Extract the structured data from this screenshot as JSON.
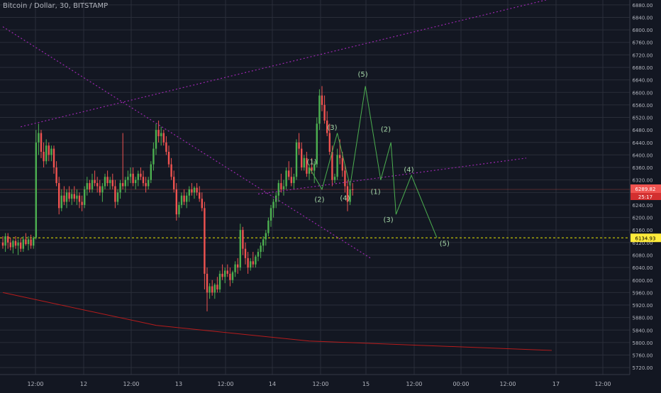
{
  "header": {
    "title": "Bitcoin / Dollar, 30, BITSTAMP"
  },
  "colors": {
    "background": "#131722",
    "grid": "#2a2e39",
    "axis_text": "#b2b5be",
    "candle_up": "#26a69a",
    "candle_up_alt": "#4caf50",
    "candle_down": "#ef5350",
    "trendline": "#9c27b0",
    "wave": "#4caf50",
    "wave_label": "#a5d6a7",
    "support": "#e6e600",
    "price_label_bg": "#ef5350",
    "support_label_bg": "#ffeb3b",
    "red_curve": "#b71c1c"
  },
  "chart_data": {
    "type": "candlestick",
    "symbol": "Bitcoin / Dollar",
    "interval": "30",
    "exchange": "BITSTAMP",
    "ylim": [
      5700,
      6900
    ],
    "y_ticks": [
      5720,
      5760,
      5800,
      5840,
      5880,
      5920,
      5960,
      6000,
      6040,
      6080,
      6120,
      6160,
      6200,
      6240,
      6280,
      6320,
      6360,
      6400,
      6440,
      6480,
      6520,
      6560,
      6600,
      6640,
      6680,
      6720,
      6760,
      6800,
      6840,
      6880
    ],
    "x_ticks": [
      "12:00",
      "12",
      "12:00",
      "13",
      "12:00",
      "14",
      "12:00",
      "15",
      "12:00",
      "00:00",
      "12:00",
      "17",
      "12:00"
    ],
    "current_price": {
      "value": 6289.82,
      "label": "6289.82",
      "countdown": "25:17"
    },
    "support_level": {
      "value": 6134.93,
      "label": "6134.93"
    },
    "ohlc_path": [
      [
        6120,
        6140,
        6100,
        6110
      ],
      [
        6110,
        6150,
        6090,
        6140
      ],
      [
        6140,
        6150,
        6100,
        6120
      ],
      [
        6120,
        6135,
        6095,
        6105
      ],
      [
        6105,
        6130,
        6085,
        6125
      ],
      [
        6125,
        6140,
        6100,
        6110
      ],
      [
        6110,
        6130,
        6080,
        6120
      ],
      [
        6120,
        6135,
        6090,
        6100
      ],
      [
        6100,
        6140,
        6090,
        6130
      ],
      [
        6130,
        6150,
        6110,
        6115
      ],
      [
        6115,
        6140,
        6095,
        6130
      ],
      [
        6130,
        6145,
        6100,
        6110
      ],
      [
        6110,
        6140,
        6100,
        6135
      ],
      [
        6135,
        6480,
        6130,
        6440
      ],
      [
        6440,
        6500,
        6400,
        6470
      ],
      [
        6470,
        6480,
        6390,
        6410
      ],
      [
        6410,
        6440,
        6360,
        6380
      ],
      [
        6380,
        6450,
        6370,
        6430
      ],
      [
        6430,
        6440,
        6380,
        6400
      ],
      [
        6400,
        6430,
        6380,
        6420
      ],
      [
        6420,
        6430,
        6340,
        6360
      ],
      [
        6360,
        6380,
        6300,
        6310
      ],
      [
        6310,
        6330,
        6210,
        6230
      ],
      [
        6230,
        6290,
        6220,
        6270
      ],
      [
        6270,
        6300,
        6240,
        6250
      ],
      [
        6250,
        6290,
        6230,
        6280
      ],
      [
        6280,
        6300,
        6250,
        6260
      ],
      [
        6260,
        6290,
        6240,
        6275
      ],
      [
        6275,
        6300,
        6250,
        6260
      ],
      [
        6260,
        6290,
        6240,
        6270
      ],
      [
        6270,
        6280,
        6230,
        6250
      ],
      [
        6250,
        6270,
        6220,
        6240
      ],
      [
        6240,
        6300,
        6230,
        6290
      ],
      [
        6290,
        6330,
        6270,
        6310
      ],
      [
        6310,
        6320,
        6280,
        6290
      ],
      [
        6290,
        6340,
        6280,
        6320
      ],
      [
        6320,
        6350,
        6300,
        6310
      ],
      [
        6310,
        6330,
        6280,
        6300
      ],
      [
        6300,
        6320,
        6270,
        6280
      ],
      [
        6280,
        6310,
        6250,
        6300
      ],
      [
        6300,
        6340,
        6290,
        6330
      ],
      [
        6330,
        6350,
        6300,
        6310
      ],
      [
        6310,
        6330,
        6290,
        6320
      ],
      [
        6320,
        6340,
        6290,
        6300
      ],
      [
        6300,
        6320,
        6230,
        6250
      ],
      [
        6250,
        6290,
        6240,
        6280
      ],
      [
        6280,
        6320,
        6260,
        6310
      ],
      [
        6310,
        6470,
        6290,
        6300
      ],
      [
        6300,
        6330,
        6280,
        6320
      ],
      [
        6320,
        6350,
        6300,
        6330
      ],
      [
        6330,
        6360,
        6310,
        6340
      ],
      [
        6340,
        6360,
        6300,
        6310
      ],
      [
        6310,
        6330,
        6290,
        6320
      ],
      [
        6320,
        6350,
        6300,
        6340
      ],
      [
        6340,
        6360,
        6320,
        6330
      ],
      [
        6330,
        6350,
        6300,
        6310
      ],
      [
        6310,
        6330,
        6280,
        6300
      ],
      [
        6300,
        6330,
        6290,
        6320
      ],
      [
        6320,
        6380,
        6310,
        6370
      ],
      [
        6370,
        6440,
        6350,
        6420
      ],
      [
        6420,
        6500,
        6400,
        6480
      ],
      [
        6480,
        6510,
        6440,
        6460
      ],
      [
        6460,
        6490,
        6430,
        6470
      ],
      [
        6470,
        6480,
        6430,
        6440
      ],
      [
        6440,
        6460,
        6400,
        6410
      ],
      [
        6410,
        6430,
        6360,
        6370
      ],
      [
        6370,
        6390,
        6320,
        6330
      ],
      [
        6330,
        6350,
        6280,
        6290
      ],
      [
        6290,
        6310,
        6190,
        6210
      ],
      [
        6210,
        6250,
        6200,
        6240
      ],
      [
        6240,
        6280,
        6230,
        6270
      ],
      [
        6270,
        6290,
        6240,
        6250
      ],
      [
        6250,
        6280,
        6230,
        6270
      ],
      [
        6270,
        6300,
        6250,
        6290
      ],
      [
        6290,
        6310,
        6270,
        6280
      ],
      [
        6280,
        6300,
        6260,
        6295
      ],
      [
        6295,
        6310,
        6270,
        6280
      ],
      [
        6280,
        6300,
        6250,
        6260
      ],
      [
        6260,
        6280,
        6220,
        6230
      ],
      [
        6230,
        6250,
        5970,
        6020
      ],
      [
        6020,
        6040,
        5900,
        5960
      ],
      [
        5960,
        5990,
        5940,
        5980
      ],
      [
        5980,
        6000,
        5950,
        5960
      ],
      [
        5960,
        5990,
        5940,
        5985
      ],
      [
        5985,
        6010,
        5960,
        5970
      ],
      [
        5970,
        6030,
        5960,
        6020
      ],
      [
        6020,
        6050,
        6000,
        6010
      ],
      [
        6010,
        6040,
        5990,
        6030
      ],
      [
        6030,
        6050,
        6010,
        6020
      ],
      [
        6020,
        6040,
        5980,
        6000
      ],
      [
        6000,
        6030,
        5990,
        6025
      ],
      [
        6025,
        6060,
        6010,
        6050
      ],
      [
        6050,
        6070,
        6020,
        6040
      ],
      [
        6040,
        6180,
        6030,
        6160
      ],
      [
        6160,
        6170,
        6080,
        6100
      ],
      [
        6100,
        6120,
        6050,
        6070
      ],
      [
        6070,
        6090,
        6020,
        6040
      ],
      [
        6040,
        6070,
        6030,
        6060
      ],
      [
        6060,
        6090,
        6040,
        6050
      ],
      [
        6050,
        6080,
        6040,
        6075
      ],
      [
        6075,
        6100,
        6060,
        6090
      ],
      [
        6090,
        6120,
        6070,
        6110
      ],
      [
        6110,
        6140,
        6090,
        6130
      ],
      [
        6130,
        6160,
        6110,
        6150
      ],
      [
        6150,
        6200,
        6140,
        6190
      ],
      [
        6190,
        6240,
        6170,
        6230
      ],
      [
        6230,
        6260,
        6200,
        6250
      ],
      [
        6250,
        6280,
        6230,
        6270
      ],
      [
        6270,
        6320,
        6250,
        6310
      ],
      [
        6310,
        6340,
        6280,
        6290
      ],
      [
        6290,
        6320,
        6270,
        6300
      ],
      [
        6300,
        6360,
        6290,
        6350
      ],
      [
        6350,
        6380,
        6320,
        6330
      ],
      [
        6330,
        6360,
        6300,
        6310
      ],
      [
        6310,
        6340,
        6290,
        6330
      ],
      [
        6330,
        6450,
        6320,
        6440
      ],
      [
        6440,
        6470,
        6400,
        6420
      ],
      [
        6420,
        6440,
        6350,
        6360
      ],
      [
        6360,
        6400,
        6350,
        6390
      ],
      [
        6390,
        6410,
        6330,
        6340
      ],
      [
        6340,
        6370,
        6320,
        6360
      ],
      [
        6360,
        6390,
        6340,
        6350
      ],
      [
        6350,
        6380,
        6310,
        6370
      ],
      [
        6370,
        6520,
        6360,
        6500
      ],
      [
        6500,
        6610,
        6480,
        6590
      ],
      [
        6590,
        6620,
        6540,
        6560
      ],
      [
        6560,
        6590,
        6500,
        6510
      ],
      [
        6510,
        6540,
        6460,
        6470
      ],
      [
        6470,
        6500,
        6400,
        6410
      ],
      [
        6410,
        6430,
        6300,
        6320
      ],
      [
        6320,
        6340,
        6310,
        6330
      ],
      [
        6330,
        6420,
        6320,
        6400
      ],
      [
        6400,
        6450,
        6370,
        6390
      ],
      [
        6390,
        6410,
        6330,
        6350
      ],
      [
        6350,
        6370,
        6280,
        6300
      ],
      [
        6300,
        6320,
        6220,
        6250
      ],
      [
        6250,
        6300,
        6240,
        6290
      ],
      [
        6290,
        6310,
        6270,
        6289.82
      ]
    ],
    "overlays": {
      "upper_trendline": [
        [
          7,
          6490
        ],
        [
          215,
          6900
        ]
      ],
      "descending_trendline": [
        [
          0,
          6810
        ],
        [
          144,
          6070
        ]
      ],
      "lower_wedge_line": [
        [
          100,
          6275
        ],
        [
          205,
          6390
        ]
      ],
      "red_curve": [
        [
          0,
          5960
        ],
        [
          60,
          5855
        ],
        [
          120,
          5805
        ],
        [
          215,
          5775
        ]
      ],
      "wave_path": [
        [
          120,
          6360
        ],
        [
          125,
          6290
        ],
        [
          131,
          6470
        ],
        [
          136,
          6300
        ],
        [
          142,
          6620
        ],
        [
          148,
          6320
        ],
        [
          152,
          6440
        ],
        [
          154,
          6210
        ],
        [
          160,
          6335
        ],
        [
          170,
          6135
        ]
      ]
    },
    "annotations": [
      {
        "label": "(1)",
        "x": 121,
        "y": 6370
      },
      {
        "label": "(2)",
        "x": 124,
        "y": 6250
      },
      {
        "label": "(3)",
        "x": 129,
        "y": 6480
      },
      {
        "label": "(4)",
        "x": 134,
        "y": 6255
      },
      {
        "label": "(5)",
        "x": 141,
        "y": 6650
      },
      {
        "label": "(1)",
        "x": 146,
        "y": 6275
      },
      {
        "label": "(2)",
        "x": 150,
        "y": 6475
      },
      {
        "label": "(3)",
        "x": 151,
        "y": 6185
      },
      {
        "label": "(4)",
        "x": 159,
        "y": 6345
      },
      {
        "label": "(5)",
        "x": 173,
        "y": 6110
      }
    ]
  }
}
